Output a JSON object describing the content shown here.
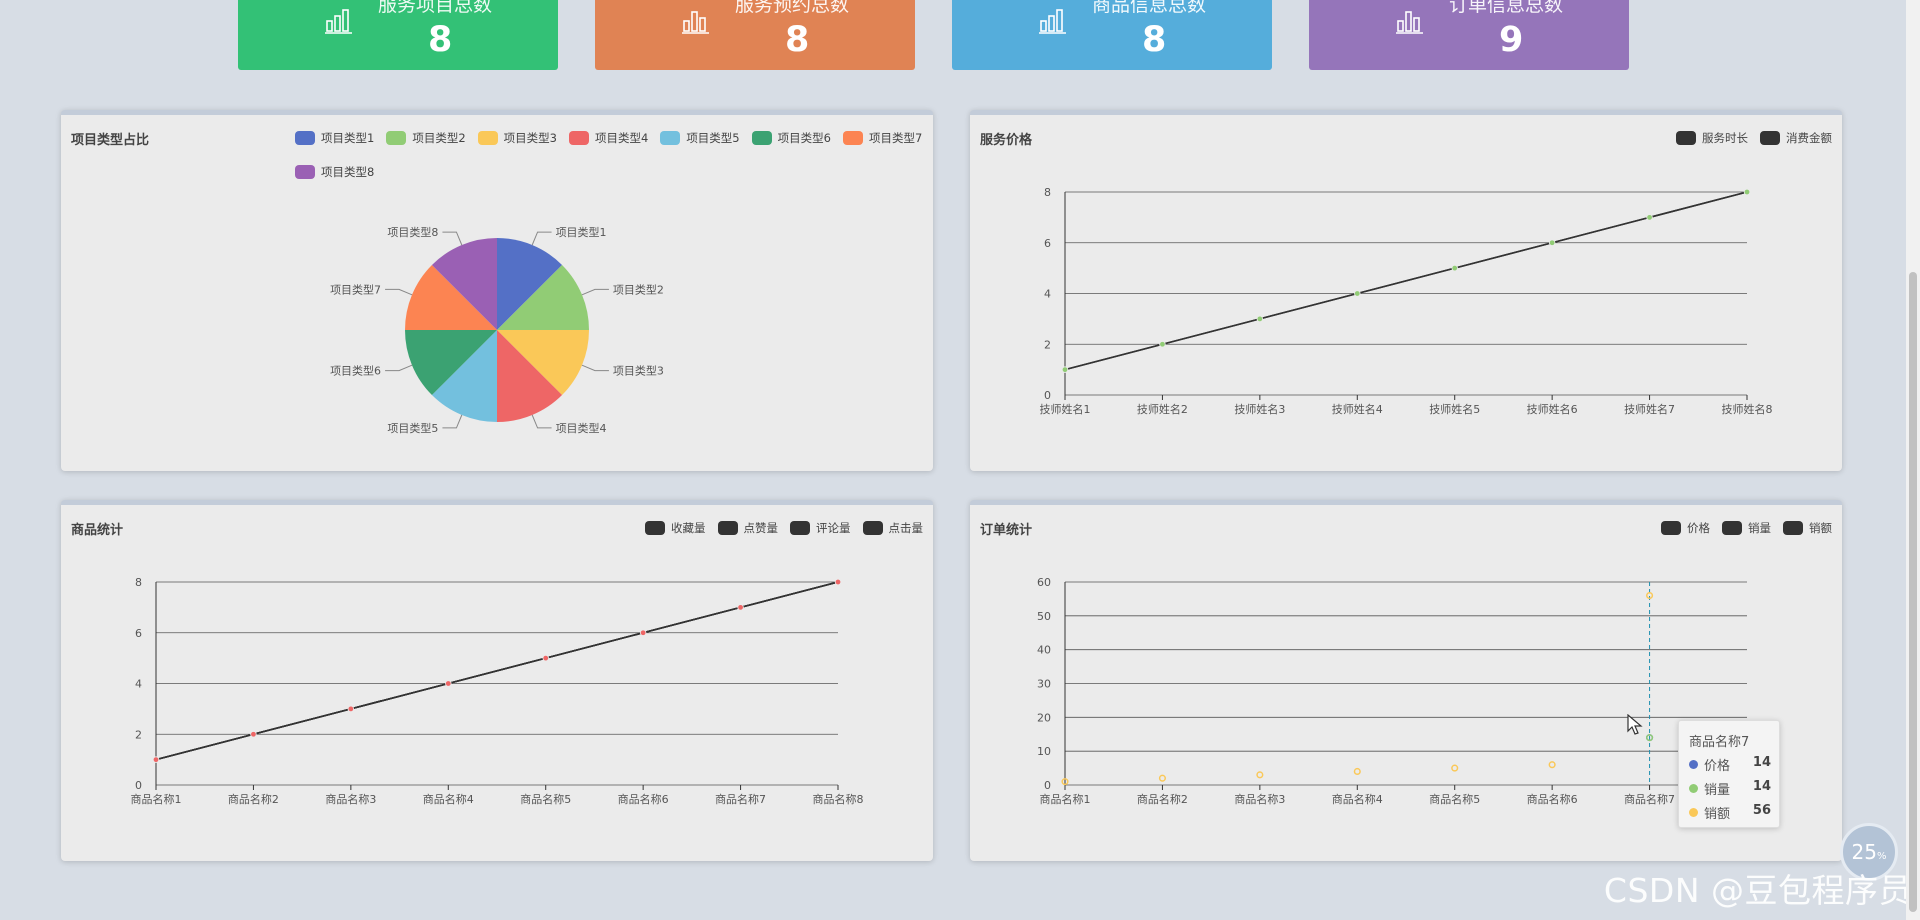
{
  "stats": [
    {
      "label": "服务项目总数",
      "value": "8",
      "color": "#33c176"
    },
    {
      "label": "服务预约总数",
      "value": "8",
      "color": "#e08354"
    },
    {
      "label": "商品信息总数",
      "value": "8",
      "color": "#55addb"
    },
    {
      "label": "订单信息总数",
      "value": "9",
      "color": "#9575ba"
    }
  ],
  "tooltip": {
    "title": "商品名称7",
    "rows": [
      {
        "name": "价格",
        "value": "14",
        "color": "#5470c6"
      },
      {
        "name": "销量",
        "value": "14",
        "color": "#91cc75"
      },
      {
        "name": "销额",
        "value": "56",
        "color": "#fac858"
      }
    ]
  },
  "zoom": {
    "value": "25",
    "unit": "%"
  },
  "watermark": "CSDN @豆包程序员",
  "chart_data": [
    {
      "type": "pie",
      "title": "项目类型占比",
      "categories": [
        "项目类型1",
        "项目类型2",
        "项目类型3",
        "项目类型4",
        "项目类型5",
        "项目类型6",
        "项目类型7",
        "项目类型8"
      ],
      "values": [
        1,
        1,
        1,
        1,
        1,
        1,
        1,
        1
      ],
      "colors": [
        "#5470c6",
        "#91cc75",
        "#fac858",
        "#ee6666",
        "#73c0de",
        "#3ba272",
        "#fc8452",
        "#9a60b4"
      ],
      "legend": "top-right"
    },
    {
      "type": "line",
      "title": "服务价格",
      "categories": [
        "技师姓名1",
        "技师姓名2",
        "技师姓名3",
        "技师姓名4",
        "技师姓名5",
        "技师姓名6",
        "技师姓名7",
        "技师姓名8"
      ],
      "series": [
        {
          "name": "服务时长",
          "values": [
            1,
            2,
            3,
            4,
            5,
            6,
            7,
            8
          ]
        },
        {
          "name": "消费金额",
          "values": [
            1,
            2,
            3,
            4,
            5,
            6,
            7,
            8
          ]
        }
      ],
      "ylim": [
        0,
        8
      ],
      "yticks": [
        0,
        2,
        4,
        6,
        8
      ],
      "point_color": "#91cc75",
      "legend": "top-right",
      "grid": true
    },
    {
      "type": "line",
      "title": "商品统计",
      "categories": [
        "商品名称1",
        "商品名称2",
        "商品名称3",
        "商品名称4",
        "商品名称5",
        "商品名称6",
        "商品名称7",
        "商品名称8"
      ],
      "series": [
        {
          "name": "收藏量",
          "values": [
            1,
            2,
            3,
            4,
            5,
            6,
            7,
            8
          ]
        },
        {
          "name": "点赞量",
          "values": [
            1,
            2,
            3,
            4,
            5,
            6,
            7,
            8
          ]
        },
        {
          "name": "评论量",
          "values": [
            1,
            2,
            3,
            4,
            5,
            6,
            7,
            8
          ]
        },
        {
          "name": "点击量",
          "values": [
            1,
            2,
            3,
            4,
            5,
            6,
            7,
            8
          ]
        }
      ],
      "ylim": [
        0,
        8
      ],
      "yticks": [
        0,
        2,
        4,
        6,
        8
      ],
      "point_color": "#ee6666",
      "legend": "top-right",
      "grid": true
    },
    {
      "type": "scatter",
      "title": "订单统计",
      "categories": [
        "商品名称1",
        "商品名称2",
        "商品名称3",
        "商品名称4",
        "商品名称5",
        "商品名称6",
        "商品名称7"
      ],
      "series": [
        {
          "name": "价格",
          "values": [
            null,
            null,
            null,
            null,
            null,
            null,
            14
          ]
        },
        {
          "name": "销量",
          "values": [
            null,
            null,
            null,
            null,
            null,
            null,
            14
          ]
        },
        {
          "name": "销额",
          "values": [
            1,
            2,
            3,
            4,
            5,
            6,
            56
          ]
        }
      ],
      "series_colors": [
        "#5470c6",
        "#91cc75",
        "#fac858"
      ],
      "ylim": [
        0,
        60
      ],
      "yticks": [
        0,
        10,
        20,
        30,
        40,
        50,
        60
      ],
      "highlight_category": "商品名称7",
      "legend": "top-right",
      "grid": true
    }
  ]
}
